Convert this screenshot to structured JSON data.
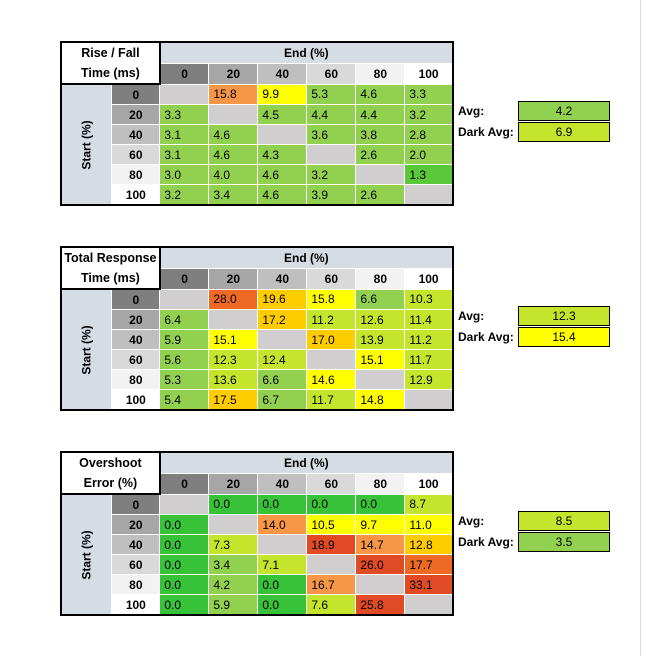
{
  "colors": {
    "green_dark": "#38c23a",
    "green": "#5ac839",
    "green_light": "#92d050",
    "lime": "#c4e52c",
    "yellow": "#ffff00",
    "yellow_orange": "#ffcc00",
    "orange": "#f79646",
    "orange_red": "#ee6a24",
    "red": "#e04a24",
    "empty": "#d0cece"
  },
  "tables": [
    {
      "title_line1": "Rise / Fall",
      "title_line2": "Time (ms)",
      "end_label": "End (%)",
      "start_label": "Start (%)",
      "columns": [
        "0",
        "20",
        "40",
        "60",
        "80",
        "100"
      ],
      "rows": [
        {
          "label": "0",
          "cells": [
            [
              "",
              "empty"
            ],
            [
              "15.8",
              "orange"
            ],
            [
              "9.9",
              "yellow"
            ],
            [
              "5.3",
              "green_light"
            ],
            [
              "4.6",
              "green_light"
            ],
            [
              "3.3",
              "green_light"
            ]
          ]
        },
        {
          "label": "20",
          "cells": [
            [
              "3.3",
              "green_light"
            ],
            [
              "",
              "empty"
            ],
            [
              "4.5",
              "green_light"
            ],
            [
              "4.4",
              "green_light"
            ],
            [
              "4.4",
              "green_light"
            ],
            [
              "3.2",
              "green_light"
            ]
          ]
        },
        {
          "label": "40",
          "cells": [
            [
              "3.1",
              "green_light"
            ],
            [
              "4.6",
              "green_light"
            ],
            [
              "",
              "empty"
            ],
            [
              "3.6",
              "green_light"
            ],
            [
              "3.8",
              "green_light"
            ],
            [
              "2.8",
              "green_light"
            ]
          ]
        },
        {
          "label": "60",
          "cells": [
            [
              "3.1",
              "green_light"
            ],
            [
              "4.6",
              "green_light"
            ],
            [
              "4.3",
              "green_light"
            ],
            [
              "",
              "empty"
            ],
            [
              "2.6",
              "green_light"
            ],
            [
              "2.0",
              "green_light"
            ]
          ]
        },
        {
          "label": "80",
          "cells": [
            [
              "3.0",
              "green_light"
            ],
            [
              "4.0",
              "green_light"
            ],
            [
              "4.6",
              "green_light"
            ],
            [
              "3.2",
              "green_light"
            ],
            [
              "",
              "empty"
            ],
            [
              "1.3",
              "green"
            ]
          ]
        },
        {
          "label": "100",
          "cells": [
            [
              "3.2",
              "green_light"
            ],
            [
              "3.4",
              "green_light"
            ],
            [
              "4.6",
              "green_light"
            ],
            [
              "3.9",
              "green_light"
            ],
            [
              "2.6",
              "green_light"
            ],
            [
              "",
              "empty"
            ]
          ]
        }
      ],
      "avg_label": "Avg:",
      "avg_value": "4.2",
      "avg_color": "green_light",
      "dark_avg_label": "Dark Avg:",
      "dark_avg_value": "6.9",
      "dark_avg_color": "lime"
    },
    {
      "title_line1": "Total Response",
      "title_line2": "Time (ms)",
      "end_label": "End (%)",
      "start_label": "Start (%)",
      "columns": [
        "0",
        "20",
        "40",
        "60",
        "80",
        "100"
      ],
      "rows": [
        {
          "label": "0",
          "cells": [
            [
              "",
              "empty"
            ],
            [
              "28.0",
              "orange_red"
            ],
            [
              "19.6",
              "yellow_orange"
            ],
            [
              "15.8",
              "yellow"
            ],
            [
              "6.6",
              "green_light"
            ],
            [
              "10.3",
              "lime"
            ]
          ]
        },
        {
          "label": "20",
          "cells": [
            [
              "6.4",
              "green_light"
            ],
            [
              "",
              "empty"
            ],
            [
              "17.2",
              "yellow_orange"
            ],
            [
              "11.2",
              "lime"
            ],
            [
              "12.6",
              "lime"
            ],
            [
              "11.4",
              "lime"
            ]
          ]
        },
        {
          "label": "40",
          "cells": [
            [
              "5.9",
              "green_light"
            ],
            [
              "15.1",
              "yellow"
            ],
            [
              "",
              "empty"
            ],
            [
              "17.0",
              "yellow_orange"
            ],
            [
              "13.9",
              "lime"
            ],
            [
              "11.2",
              "lime"
            ]
          ]
        },
        {
          "label": "60",
          "cells": [
            [
              "5.6",
              "green_light"
            ],
            [
              "12.3",
              "lime"
            ],
            [
              "12.4",
              "lime"
            ],
            [
              "",
              "empty"
            ],
            [
              "15.1",
              "yellow"
            ],
            [
              "11.7",
              "lime"
            ]
          ]
        },
        {
          "label": "80",
          "cells": [
            [
              "5.3",
              "green_light"
            ],
            [
              "13.6",
              "lime"
            ],
            [
              "6.6",
              "green_light"
            ],
            [
              "14.6",
              "yellow"
            ],
            [
              "",
              "empty"
            ],
            [
              "12.9",
              "lime"
            ]
          ]
        },
        {
          "label": "100",
          "cells": [
            [
              "5.4",
              "green_light"
            ],
            [
              "17.5",
              "yellow_orange"
            ],
            [
              "6.7",
              "green_light"
            ],
            [
              "11.7",
              "lime"
            ],
            [
              "14.8",
              "yellow"
            ],
            [
              "",
              "empty"
            ]
          ]
        }
      ],
      "avg_label": "Avg:",
      "avg_value": "12.3",
      "avg_color": "lime",
      "dark_avg_label": "Dark Avg:",
      "dark_avg_value": "15.4",
      "dark_avg_color": "yellow"
    },
    {
      "title_line1": "Overshoot",
      "title_line2": "Error (%)",
      "end_label": "End (%)",
      "start_label": "Start (%)",
      "columns": [
        "0",
        "20",
        "40",
        "60",
        "80",
        "100"
      ],
      "rows": [
        {
          "label": "0",
          "cells": [
            [
              "",
              "empty"
            ],
            [
              "0.0",
              "green_dark"
            ],
            [
              "0.0",
              "green_dark"
            ],
            [
              "0.0",
              "green_dark"
            ],
            [
              "0.0",
              "green_dark"
            ],
            [
              "8.7",
              "lime"
            ]
          ]
        },
        {
          "label": "20",
          "cells": [
            [
              "0.0",
              "green_dark"
            ],
            [
              "",
              "empty"
            ],
            [
              "14.0",
              "orange"
            ],
            [
              "10.5",
              "yellow"
            ],
            [
              "9.7",
              "yellow"
            ],
            [
              "11.0",
              "yellow"
            ]
          ]
        },
        {
          "label": "40",
          "cells": [
            [
              "0.0",
              "green_dark"
            ],
            [
              "7.3",
              "lime"
            ],
            [
              "",
              "empty"
            ],
            [
              "18.9",
              "red"
            ],
            [
              "14.7",
              "orange"
            ],
            [
              "12.8",
              "yellow_orange"
            ]
          ]
        },
        {
          "label": "60",
          "cells": [
            [
              "0.0",
              "green_dark"
            ],
            [
              "3.4",
              "green_light"
            ],
            [
              "7.1",
              "lime"
            ],
            [
              "",
              "empty"
            ],
            [
              "26.0",
              "red"
            ],
            [
              "17.7",
              "orange_red"
            ]
          ]
        },
        {
          "label": "80",
          "cells": [
            [
              "0.0",
              "green_dark"
            ],
            [
              "4.2",
              "green_light"
            ],
            [
              "0.0",
              "green_dark"
            ],
            [
              "16.7",
              "orange"
            ],
            [
              "",
              "empty"
            ],
            [
              "33.1",
              "red"
            ]
          ]
        },
        {
          "label": "100",
          "cells": [
            [
              "0.0",
              "green_dark"
            ],
            [
              "5.9",
              "green_light"
            ],
            [
              "0.0",
              "green_dark"
            ],
            [
              "7.6",
              "lime"
            ],
            [
              "25.8",
              "red"
            ],
            [
              "",
              "empty"
            ]
          ]
        }
      ],
      "avg_label": "Avg:",
      "avg_value": "8.5",
      "avg_color": "lime",
      "dark_avg_label": "Dark Avg:",
      "dark_avg_value": "3.5",
      "dark_avg_color": "green_light"
    }
  ]
}
